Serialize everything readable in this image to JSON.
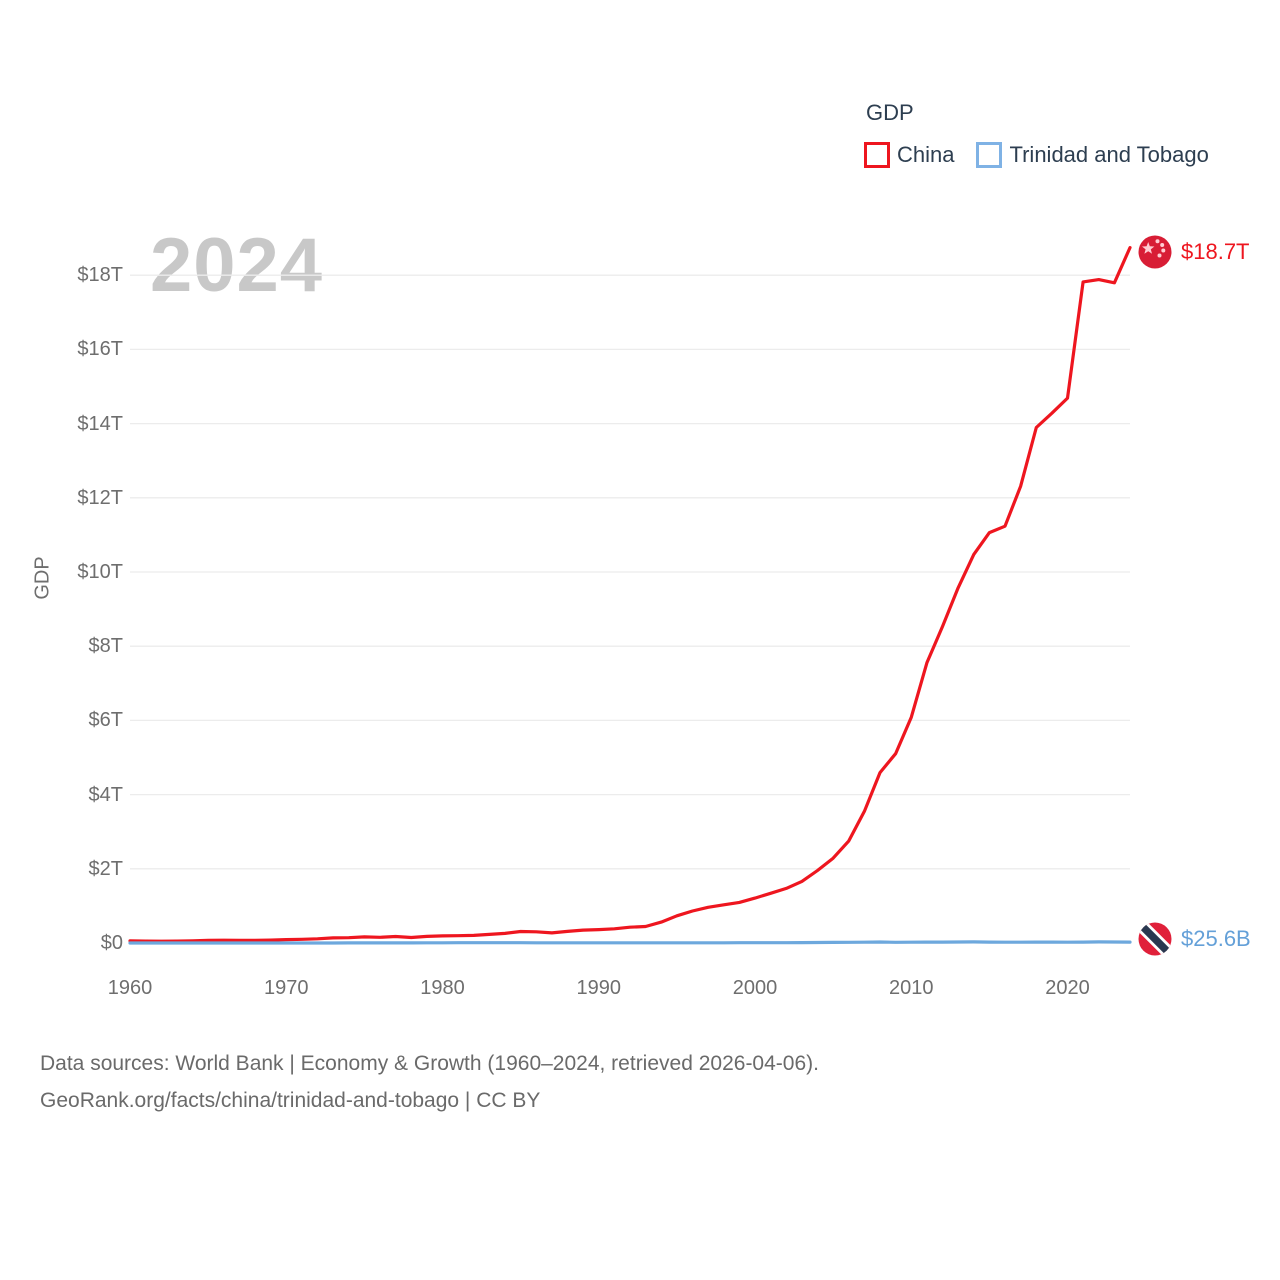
{
  "legend": {
    "title": "GDP",
    "items": [
      {
        "label": "China",
        "swatch_color": "#ee161f"
      },
      {
        "label": "Trinidad and Tobago",
        "swatch_color": "#7fb2e5"
      }
    ]
  },
  "watermark": "2024",
  "y_axis": {
    "title": "GDP",
    "ticks": [
      {
        "label": "$0",
        "value": 0
      },
      {
        "label": "$2T",
        "value": 2
      },
      {
        "label": "$4T",
        "value": 4
      },
      {
        "label": "$6T",
        "value": 6
      },
      {
        "label": "$8T",
        "value": 8
      },
      {
        "label": "$10T",
        "value": 10
      },
      {
        "label": "$12T",
        "value": 12
      },
      {
        "label": "$14T",
        "value": 14
      },
      {
        "label": "$16T",
        "value": 16
      },
      {
        "label": "$18T",
        "value": 18
      }
    ]
  },
  "x_axis": {
    "ticks": [
      {
        "label": "1960",
        "year": 1960
      },
      {
        "label": "1970",
        "year": 1970
      },
      {
        "label": "1980",
        "year": 1980
      },
      {
        "label": "1990",
        "year": 1990
      },
      {
        "label": "2000",
        "year": 2000
      },
      {
        "label": "2010",
        "year": 2010
      },
      {
        "label": "2020",
        "year": 2020
      }
    ]
  },
  "end_labels": {
    "china": "$18.7T",
    "trinidad_and_tobago": "$25.6B"
  },
  "footer": {
    "line1": "Data sources: World Bank | Economy & Growth (1960–2024, retrieved 2026-04-06).",
    "line2": "GeoRank.org/facts/china/trinidad-and-tobago | CC BY"
  },
  "colors": {
    "china_line": "#ee161f",
    "trinidad_line": "#6da8dd",
    "trinidad_label_text": "#64a0d8",
    "grid": "#ececec",
    "tick_text": "#6e6e6e",
    "legend_text": "#2d3e50",
    "watermark": "#c8c8c8",
    "footer_text": "#6a6a6a",
    "china_flag_bg": "#d81d35",
    "china_flag_stars": "#ffccd2",
    "tt_flag_bg": "#e0203a",
    "tt_flag_band": "#2a3850"
  },
  "chart_data": {
    "type": "line",
    "title": "GDP",
    "ylabel": "GDP",
    "xlabel": "",
    "grid": true,
    "legend_position": "top-right",
    "xlim": [
      1960,
      2024
    ],
    "ylim_trillions_usd": [
      0,
      19.3
    ],
    "y_tick_step_trillions": 2,
    "years": [
      1960,
      1961,
      1962,
      1963,
      1964,
      1965,
      1966,
      1967,
      1968,
      1969,
      1970,
      1971,
      1972,
      1973,
      1974,
      1975,
      1976,
      1977,
      1978,
      1979,
      1980,
      1981,
      1982,
      1983,
      1984,
      1985,
      1986,
      1987,
      1988,
      1989,
      1990,
      1991,
      1992,
      1993,
      1994,
      1995,
      1996,
      1997,
      1998,
      1999,
      2000,
      2001,
      2002,
      2003,
      2004,
      2005,
      2006,
      2007,
      2008,
      2009,
      2010,
      2011,
      2012,
      2013,
      2014,
      2015,
      2016,
      2017,
      2018,
      2019,
      2020,
      2021,
      2022,
      2023,
      2024
    ],
    "series": [
      {
        "name": "China",
        "unit": "USD trillions",
        "color": "#ee161f",
        "end_label": "$18.7T",
        "end_value_trillions": 18.7,
        "values_trillions_usd": [
          0.0597,
          0.0501,
          0.0472,
          0.0507,
          0.0597,
          0.0702,
          0.0767,
          0.0726,
          0.0707,
          0.0795,
          0.0926,
          0.0996,
          0.1132,
          0.1386,
          0.1442,
          0.1634,
          0.1539,
          0.1749,
          0.1495,
          0.1783,
          0.1911,
          0.1959,
          0.2054,
          0.2307,
          0.2599,
          0.3095,
          0.3007,
          0.2726,
          0.3121,
          0.3478,
          0.3609,
          0.3834,
          0.4267,
          0.4447,
          0.5643,
          0.7345,
          0.8637,
          0.9616,
          1.0294,
          1.0941,
          1.2113,
          1.3394,
          1.4705,
          1.6602,
          1.9553,
          2.286,
          2.7522,
          3.5503,
          4.5943,
          5.1017,
          6.0871,
          7.5515,
          8.5323,
          9.5704,
          10.4756,
          11.0616,
          11.2333,
          12.3104,
          13.8948,
          14.2799,
          14.6877,
          17.8205,
          17.8817,
          17.7948,
          18.7437
        ]
      },
      {
        "name": "Trinidad and Tobago",
        "unit": "USD billions",
        "color": "#6da8dd",
        "end_label": "$25.6B",
        "end_value_billions": 25.6,
        "values_billions_usd": [
          0.54,
          0.58,
          0.62,
          0.66,
          0.7,
          0.72,
          0.74,
          0.78,
          0.81,
          0.83,
          0.82,
          0.9,
          1.0,
          1.31,
          2.04,
          2.44,
          2.5,
          3.14,
          3.56,
          4.6,
          6.24,
          6.97,
          8.14,
          7.76,
          7.77,
          7.38,
          4.79,
          4.69,
          4.54,
          4.32,
          5.07,
          5.31,
          5.44,
          4.58,
          4.95,
          5.33,
          5.76,
          5.74,
          6.05,
          6.81,
          8.15,
          8.83,
          9.01,
          11.31,
          13.28,
          15.98,
          18.37,
          21.54,
          27.87,
          19.2,
          22.16,
          25.38,
          25.31,
          27.19,
          28.76,
          24.97,
          21.55,
          22.53,
          24.03,
          23.34,
          21.59,
          24.46,
          30.33,
          28.14,
          25.6
        ]
      }
    ]
  }
}
